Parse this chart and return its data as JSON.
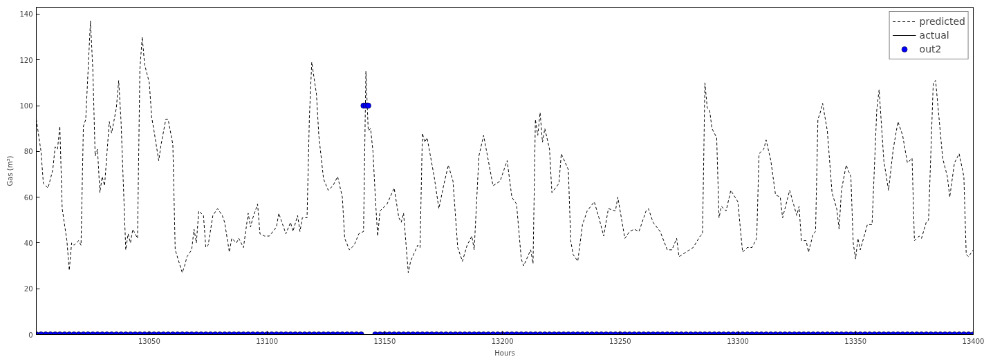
{
  "chart_data": {
    "type": "line",
    "xlabel": "Hours",
    "ylabel": "Gas (m³)",
    "xlim": [
      13002,
      13400
    ],
    "xticks": [
      13050,
      13100,
      13150,
      13200,
      13250,
      13300,
      13350,
      13400
    ],
    "ylim": [
      0,
      143
    ],
    "yticks": [
      0,
      20,
      40,
      60,
      80,
      100,
      120,
      140
    ],
    "grid": false,
    "legend": "top right",
    "series": [
      {
        "name": "predicted",
        "line_style": "dashed",
        "color": "#000000",
        "x": [
          13002,
          13004,
          13005,
          13007,
          13009,
          13010,
          13011,
          13012,
          13013,
          13015,
          13016,
          13017,
          13018,
          13020,
          13021,
          13022,
          13023,
          13025,
          13026,
          13027,
          13028,
          13029,
          13030,
          13031,
          13033,
          13034,
          13036,
          13037,
          13038,
          13040,
          13041,
          13042,
          13043,
          13045,
          13046,
          13047,
          13048,
          13050,
          13051,
          13052,
          13054,
          13055,
          13057,
          13058,
          13060,
          13061,
          13064,
          13065,
          13066,
          13068,
          13069,
          13070,
          13071,
          13073,
          13074,
          13075,
          13077,
          13079,
          13081,
          13082,
          13084,
          13085,
          13087,
          13088,
          13090,
          13092,
          13093,
          13094,
          13096,
          13097,
          13099,
          13101,
          13104,
          13105,
          13106,
          13108,
          13110,
          13111,
          13113,
          13114,
          13115,
          13117,
          13118,
          13119,
          13121,
          13122,
          13124,
          13126,
          13128,
          13130,
          13132,
          13133,
          13135,
          13137,
          13139,
          13141,
          13142,
          13143,
          13144,
          13145,
          13146,
          13147,
          13148,
          13151,
          13154,
          13156,
          13157,
          13158,
          13160,
          13161,
          13164,
          13165,
          13166,
          13167,
          13168,
          13171,
          13173,
          13175,
          13177,
          13179,
          13181,
          13183,
          13185,
          13187,
          13188,
          13190,
          13192,
          13196,
          13199,
          13202,
          13204,
          13206,
          13208,
          13209,
          13212,
          13213,
          13214,
          13215,
          13216,
          13217,
          13218,
          13220,
          13221,
          13224,
          13225,
          13228,
          13229,
          13230,
          13232,
          13234,
          13236,
          13239,
          13241,
          13243,
          13245,
          13248,
          13249,
          13252,
          13254,
          13256,
          13258,
          13261,
          13262,
          13264,
          13267,
          13270,
          13272,
          13274,
          13275,
          13278,
          13281,
          13284,
          13285,
          13286,
          13287,
          13288,
          13289,
          13291,
          13292,
          13293,
          13295,
          13297,
          13300,
          13302,
          13304,
          13306,
          13308,
          13309,
          13311,
          13312,
          13314,
          13316,
          13318,
          13319,
          13322,
          13325,
          13326,
          13327,
          13329,
          13330,
          13332,
          13333,
          13334,
          13335,
          13336,
          13338,
          13340,
          13342,
          13343,
          13344,
          13346,
          13348,
          13349,
          13350,
          13351,
          13352,
          13355,
          13357,
          13359,
          13360,
          13362,
          13364,
          13366,
          13368,
          13370,
          13372,
          13374,
          13375,
          13377,
          13378,
          13380,
          13381,
          13383,
          13384,
          13387,
          13389,
          13390,
          13392,
          13394,
          13396,
          13397,
          13398,
          13400
        ],
        "values": [
          94,
          80,
          66,
          64,
          72,
          82,
          81,
          91,
          55,
          41,
          28,
          40,
          39,
          41,
          39,
          91,
          94,
          137,
          116,
          78,
          81,
          62,
          69,
          65,
          93,
          88,
          99,
          111,
          93,
          37,
          44,
          40,
          46,
          42,
          116,
          130,
          118,
          110,
          95,
          89,
          76,
          83,
          94,
          94,
          83,
          37,
          27,
          30,
          34,
          37,
          46,
          40,
          54,
          52,
          38,
          39,
          52,
          55,
          52,
          49,
          36,
          42,
          40,
          42,
          38,
          53,
          47,
          51,
          57,
          44,
          43,
          43,
          47,
          53,
          50,
          44,
          49,
          45,
          52,
          45,
          51,
          51,
          95,
          119,
          105,
          87,
          68,
          63,
          65,
          69,
          60,
          42,
          37,
          39,
          44,
          45,
          115,
          89,
          90,
          80,
          60,
          43,
          54,
          57,
          64,
          51,
          49,
          53,
          27,
          32,
          39,
          38,
          88,
          84,
          86,
          69,
          55,
          65,
          74,
          67,
          38,
          32,
          39,
          43,
          37,
          78,
          87,
          65,
          67,
          76,
          60,
          57,
          33,
          30,
          37,
          31,
          94,
          87,
          97,
          84,
          90,
          81,
          62,
          66,
          79,
          72,
          41,
          35,
          32,
          48,
          54,
          58,
          51,
          43,
          55,
          54,
          60,
          42,
          45,
          46,
          45,
          54,
          55,
          49,
          45,
          37,
          37,
          42,
          34,
          36,
          38,
          43,
          44,
          110,
          99,
          98,
          90,
          86,
          51,
          56,
          54,
          63,
          58,
          36,
          38,
          38,
          42,
          79,
          81,
          85,
          76,
          61,
          60,
          51,
          63,
          52,
          56,
          41,
          41,
          36,
          44,
          45,
          94,
          97,
          101,
          89,
          62,
          55,
          46,
          63,
          74,
          69,
          40,
          33,
          42,
          37,
          48,
          48,
          98,
          107,
          76,
          63,
          81,
          93,
          87,
          75,
          77,
          41,
          43,
          42,
          49,
          50,
          110,
          111,
          77,
          69,
          60,
          75,
          79,
          69,
          35,
          34,
          37
        ]
      },
      {
        "name": "actual",
        "line_style": "solid",
        "color": "#000000"
      },
      {
        "name": "out2",
        "type": "scatter",
        "marker": "circle",
        "color": "#0000ff",
        "x": [
          13002,
          13004,
          13006,
          13008,
          13010,
          13012,
          13014,
          13016,
          13018,
          13020,
          13022,
          13024,
          13026,
          13028,
          13030,
          13032,
          13034,
          13036,
          13038,
          13040,
          13042,
          13044,
          13046,
          13048,
          13050,
          13052,
          13054,
          13056,
          13058,
          13060,
          13062,
          13064,
          13066,
          13068,
          13070,
          13072,
          13074,
          13076,
          13078,
          13080,
          13082,
          13084,
          13086,
          13088,
          13090,
          13092,
          13094,
          13096,
          13098,
          13100,
          13102,
          13104,
          13106,
          13108,
          13110,
          13112,
          13114,
          13116,
          13118,
          13120,
          13122,
          13124,
          13126,
          13128,
          13130,
          13132,
          13134,
          13136,
          13138,
          13140,
          13141,
          13142,
          13143,
          13146,
          13148,
          13150,
          13152,
          13154,
          13156,
          13158,
          13160,
          13162,
          13164,
          13166,
          13168,
          13170,
          13172,
          13174,
          13176,
          13178,
          13180,
          13182,
          13184,
          13186,
          13188,
          13190,
          13192,
          13194,
          13196,
          13198,
          13200,
          13202,
          13204,
          13206,
          13208,
          13210,
          13212,
          13214,
          13216,
          13218,
          13220,
          13222,
          13224,
          13226,
          13228,
          13230,
          13232,
          13234,
          13236,
          13238,
          13240,
          13242,
          13244,
          13246,
          13248,
          13250,
          13252,
          13254,
          13256,
          13258,
          13260,
          13262,
          13264,
          13266,
          13268,
          13270,
          13272,
          13274,
          13276,
          13278,
          13280,
          13282,
          13284,
          13286,
          13288,
          13290,
          13292,
          13294,
          13296,
          13298,
          13300,
          13302,
          13304,
          13306,
          13308,
          13310,
          13312,
          13314,
          13316,
          13318,
          13320,
          13322,
          13324,
          13326,
          13328,
          13330,
          13332,
          13334,
          13336,
          13338,
          13340,
          13342,
          13344,
          13346,
          13348,
          13350,
          13352,
          13354,
          13356,
          13358,
          13360,
          13362,
          13364,
          13366,
          13368,
          13370,
          13372,
          13374,
          13376,
          13378,
          13380,
          13382,
          13384,
          13386,
          13388,
          13390,
          13392,
          13394,
          13396,
          13398,
          13400
        ],
        "values": [
          0,
          0,
          0,
          0,
          0,
          0,
          0,
          0,
          0,
          0,
          0,
          0,
          0,
          0,
          0,
          0,
          0,
          0,
          0,
          0,
          0,
          0,
          0,
          0,
          0,
          0,
          0,
          0,
          0,
          0,
          0,
          0,
          0,
          0,
          0,
          0,
          0,
          0,
          0,
          0,
          0,
          0,
          0,
          0,
          0,
          0,
          0,
          0,
          0,
          0,
          0,
          0,
          0,
          0,
          0,
          0,
          0,
          0,
          0,
          0,
          0,
          0,
          0,
          0,
          0,
          0,
          0,
          0,
          0,
          0,
          100,
          100,
          100,
          0,
          0,
          0,
          0,
          0,
          0,
          0,
          0,
          0,
          0,
          0,
          0,
          0,
          0,
          0,
          0,
          0,
          0,
          0,
          0,
          0,
          0,
          0,
          0,
          0,
          0,
          0,
          0,
          0,
          0,
          0,
          0,
          0,
          0,
          0,
          0,
          0,
          0,
          0,
          0,
          0,
          0,
          0,
          0,
          0,
          0,
          0,
          0,
          0,
          0,
          0,
          0,
          0,
          0,
          0,
          0,
          0,
          0,
          0,
          0,
          0,
          0,
          0,
          0,
          0,
          0,
          0,
          0,
          0,
          0,
          0,
          0,
          0,
          0,
          0,
          0,
          0,
          0,
          0,
          0,
          0,
          0,
          0,
          0,
          0,
          0,
          0,
          0,
          0,
          0,
          0,
          0,
          0,
          0,
          0,
          0,
          0,
          0,
          0,
          0,
          0,
          0,
          0,
          0,
          0,
          0,
          0,
          0,
          0,
          0,
          0,
          0,
          0,
          0,
          0,
          0,
          0,
          0,
          0,
          0,
          0,
          0,
          0,
          0,
          0,
          0,
          0,
          0
        ]
      }
    ]
  }
}
